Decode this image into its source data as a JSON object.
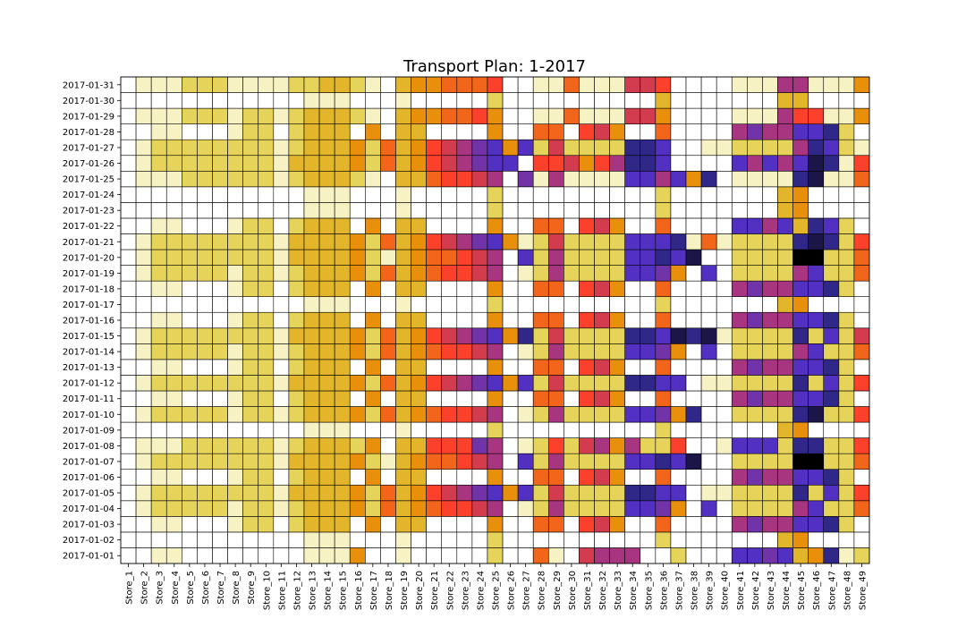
{
  "chart_data": {
    "type": "heatmap",
    "title": "Transport Plan: 1-2017",
    "x": [
      "Store_1",
      "Store_2",
      "Store_3",
      "Store_4",
      "Store_5",
      "Store_6",
      "Store_7",
      "Store_8",
      "Store_9",
      "Store_10",
      "Store_11",
      "Store_12",
      "Store_13",
      "Store_14",
      "Store_15",
      "Store_16",
      "Store_17",
      "Store_18",
      "Store_19",
      "Store_20",
      "Store_21",
      "Store_22",
      "Store_23",
      "Store_24",
      "Store_25",
      "Store_26",
      "Store_27",
      "Store_28",
      "Store_29",
      "Store_30",
      "Store_31",
      "Store_32",
      "Store_33",
      "Store_34",
      "Store_35",
      "Store_36",
      "Store_37",
      "Store_38",
      "Store_39",
      "Store_40",
      "Store_41",
      "Store_42",
      "Store_43",
      "Store_44",
      "Store_45",
      "Store_46",
      "Store_47",
      "Store_48",
      "Store_49"
    ],
    "y": [
      "2017-01-01",
      "2017-01-02",
      "2017-01-03",
      "2017-01-04",
      "2017-01-05",
      "2017-01-06",
      "2017-01-07",
      "2017-01-08",
      "2017-01-09",
      "2017-01-10",
      "2017-01-11",
      "2017-01-12",
      "2017-01-13",
      "2017-01-14",
      "2017-01-15",
      "2017-01-16",
      "2017-01-17",
      "2017-01-18",
      "2017-01-19",
      "2017-01-20",
      "2017-01-21",
      "2017-01-22",
      "2017-01-23",
      "2017-01-24",
      "2017-01-25",
      "2017-01-26",
      "2017-01-27",
      "2017-01-28",
      "2017-01-29",
      "2017-01-30",
      "2017-01-31"
    ],
    "zlim": [
      0,
      13
    ],
    "colors": [
      "#ffffff",
      "#f6f2c4",
      "#e6d35a",
      "#e2b52a",
      "#e8900c",
      "#f2661c",
      "#fb402c",
      "#d23c4e",
      "#a83580",
      "#7034a8",
      "#5230c2",
      "#302888",
      "#1c1648",
      "#000000"
    ],
    "z": [
      [
        0,
        0,
        1,
        1,
        0,
        0,
        0,
        0,
        0,
        0,
        0,
        0,
        1,
        1,
        1,
        4,
        0,
        0,
        1,
        0,
        0,
        0,
        0,
        0,
        2,
        0,
        0,
        5,
        1,
        0,
        7,
        8,
        8,
        8,
        0,
        0,
        2,
        0,
        0,
        0,
        10,
        10,
        9,
        10,
        3,
        4,
        11,
        1,
        2
      ],
      [
        0,
        0,
        0,
        0,
        0,
        0,
        0,
        0,
        0,
        0,
        0,
        0,
        1,
        1,
        1,
        0,
        0,
        0,
        1,
        0,
        0,
        0,
        0,
        0,
        2,
        0,
        0,
        0,
        0,
        0,
        0,
        0,
        0,
        0,
        0,
        2,
        0,
        0,
        0,
        0,
        0,
        0,
        0,
        3,
        4,
        0,
        0,
        0,
        0
      ],
      [
        0,
        0,
        1,
        1,
        0,
        0,
        0,
        1,
        2,
        2,
        0,
        2,
        3,
        3,
        3,
        0,
        4,
        0,
        3,
        3,
        0,
        0,
        0,
        0,
        4,
        0,
        0,
        5,
        5,
        0,
        6,
        7,
        4,
        0,
        0,
        5,
        0,
        0,
        0,
        0,
        8,
        9,
        8,
        8,
        10,
        10,
        11,
        2,
        0
      ],
      [
        0,
        1,
        2,
        2,
        2,
        2,
        2,
        1,
        2,
        2,
        1,
        2,
        3,
        3,
        3,
        4,
        2,
        5,
        3,
        4,
        5,
        6,
        6,
        7,
        8,
        0,
        1,
        2,
        8,
        2,
        2,
        2,
        2,
        10,
        10,
        9,
        4,
        0,
        10,
        0,
        2,
        2,
        2,
        2,
        8,
        10,
        2,
        2,
        5
      ],
      [
        0,
        1,
        2,
        2,
        2,
        2,
        2,
        2,
        2,
        2,
        1,
        3,
        3,
        3,
        3,
        4,
        2,
        5,
        3,
        4,
        6,
        7,
        8,
        9,
        10,
        4,
        10,
        2,
        7,
        2,
        2,
        2,
        2,
        11,
        11,
        10,
        10,
        0,
        1,
        1,
        2,
        2,
        2,
        2,
        11,
        2,
        10,
        2,
        6
      ],
      [
        0,
        0,
        1,
        1,
        0,
        0,
        0,
        1,
        2,
        2,
        0,
        2,
        3,
        3,
        3,
        0,
        4,
        0,
        3,
        3,
        0,
        0,
        0,
        0,
        4,
        0,
        0,
        5,
        5,
        0,
        6,
        7,
        4,
        0,
        0,
        5,
        0,
        0,
        0,
        0,
        8,
        9,
        8,
        8,
        10,
        10,
        11,
        2,
        0
      ],
      [
        0,
        1,
        2,
        2,
        2,
        2,
        2,
        2,
        2,
        2,
        1,
        3,
        3,
        3,
        3,
        4,
        2,
        1,
        3,
        4,
        5,
        5,
        6,
        7,
        8,
        0,
        10,
        2,
        8,
        2,
        2,
        2,
        2,
        10,
        10,
        11,
        10,
        12,
        0,
        0,
        2,
        2,
        2,
        2,
        13,
        13,
        2,
        2,
        5
      ],
      [
        0,
        1,
        1,
        1,
        2,
        2,
        2,
        2,
        2,
        2,
        1,
        2,
        3,
        3,
        3,
        2,
        4,
        0,
        3,
        3,
        6,
        6,
        6,
        9,
        8,
        0,
        1,
        2,
        6,
        2,
        7,
        8,
        4,
        8,
        2,
        2,
        6,
        0,
        0,
        1,
        10,
        10,
        10,
        2,
        11,
        11,
        2,
        2,
        6
      ],
      [
        0,
        0,
        0,
        0,
        0,
        0,
        0,
        0,
        0,
        0,
        0,
        0,
        1,
        1,
        1,
        0,
        0,
        0,
        1,
        0,
        0,
        0,
        0,
        0,
        2,
        0,
        0,
        0,
        0,
        0,
        0,
        0,
        0,
        0,
        0,
        2,
        0,
        0,
        0,
        0,
        0,
        0,
        0,
        3,
        4,
        0,
        0,
        0,
        0
      ],
      [
        0,
        1,
        2,
        2,
        2,
        2,
        2,
        1,
        2,
        2,
        1,
        2,
        3,
        3,
        3,
        4,
        2,
        5,
        3,
        4,
        5,
        6,
        6,
        7,
        8,
        0,
        1,
        2,
        8,
        2,
        2,
        2,
        2,
        10,
        10,
        9,
        4,
        11,
        0,
        0,
        2,
        2,
        2,
        2,
        11,
        12,
        2,
        2,
        6
      ],
      [
        0,
        0,
        1,
        1,
        0,
        0,
        0,
        1,
        2,
        2,
        0,
        2,
        3,
        3,
        3,
        0,
        4,
        0,
        3,
        3,
        0,
        0,
        0,
        0,
        4,
        0,
        0,
        5,
        5,
        0,
        6,
        7,
        4,
        0,
        0,
        5,
        0,
        0,
        0,
        0,
        8,
        9,
        8,
        8,
        10,
        10,
        11,
        2,
        0
      ],
      [
        0,
        1,
        2,
        2,
        2,
        2,
        2,
        2,
        2,
        2,
        1,
        3,
        3,
        3,
        3,
        4,
        2,
        5,
        3,
        4,
        6,
        7,
        8,
        9,
        10,
        4,
        10,
        2,
        7,
        2,
        2,
        2,
        2,
        11,
        11,
        10,
        10,
        0,
        1,
        1,
        2,
        2,
        2,
        2,
        11,
        2,
        10,
        2,
        6
      ],
      [
        0,
        0,
        1,
        1,
        0,
        0,
        0,
        1,
        2,
        2,
        0,
        2,
        3,
        3,
        3,
        0,
        4,
        0,
        3,
        3,
        0,
        0,
        0,
        0,
        4,
        0,
        0,
        5,
        5,
        0,
        6,
        7,
        4,
        0,
        0,
        5,
        0,
        0,
        0,
        0,
        8,
        9,
        8,
        8,
        10,
        10,
        11,
        2,
        0
      ],
      [
        0,
        1,
        2,
        2,
        2,
        2,
        2,
        1,
        2,
        2,
        1,
        2,
        3,
        3,
        3,
        4,
        2,
        5,
        3,
        4,
        5,
        6,
        6,
        7,
        8,
        0,
        1,
        2,
        8,
        2,
        2,
        2,
        2,
        10,
        10,
        9,
        4,
        0,
        10,
        0,
        2,
        2,
        2,
        2,
        8,
        10,
        2,
        2,
        5
      ],
      [
        0,
        1,
        2,
        2,
        2,
        2,
        2,
        2,
        2,
        2,
        1,
        3,
        3,
        3,
        3,
        4,
        2,
        5,
        3,
        4,
        6,
        7,
        8,
        9,
        10,
        4,
        11,
        2,
        7,
        2,
        2,
        2,
        2,
        11,
        11,
        10,
        12,
        11,
        12,
        1,
        2,
        2,
        2,
        2,
        11,
        2,
        10,
        2,
        7
      ],
      [
        0,
        0,
        1,
        1,
        0,
        0,
        0,
        1,
        2,
        2,
        0,
        2,
        3,
        3,
        3,
        0,
        4,
        0,
        3,
        3,
        0,
        0,
        0,
        0,
        4,
        0,
        0,
        5,
        5,
        0,
        6,
        7,
        4,
        0,
        0,
        5,
        0,
        0,
        0,
        0,
        8,
        9,
        8,
        8,
        10,
        10,
        11,
        2,
        0
      ],
      [
        0,
        0,
        0,
        0,
        0,
        0,
        0,
        0,
        0,
        0,
        0,
        0,
        1,
        1,
        1,
        0,
        0,
        0,
        1,
        0,
        0,
        0,
        0,
        0,
        2,
        0,
        0,
        0,
        0,
        0,
        0,
        0,
        0,
        0,
        0,
        2,
        0,
        0,
        0,
        0,
        0,
        0,
        0,
        3,
        4,
        0,
        0,
        0,
        0
      ],
      [
        0,
        0,
        1,
        1,
        0,
        0,
        0,
        1,
        2,
        2,
        0,
        2,
        3,
        3,
        3,
        0,
        4,
        0,
        3,
        3,
        0,
        0,
        0,
        0,
        4,
        0,
        0,
        5,
        5,
        0,
        6,
        7,
        4,
        0,
        0,
        5,
        0,
        0,
        0,
        0,
        8,
        9,
        8,
        8,
        10,
        10,
        11,
        2,
        0
      ],
      [
        0,
        1,
        2,
        2,
        2,
        2,
        2,
        1,
        2,
        2,
        1,
        2,
        3,
        3,
        3,
        4,
        2,
        5,
        3,
        4,
        5,
        6,
        6,
        7,
        8,
        0,
        1,
        2,
        8,
        2,
        2,
        2,
        2,
        10,
        10,
        9,
        4,
        0,
        10,
        0,
        2,
        2,
        2,
        2,
        8,
        10,
        2,
        2,
        5
      ],
      [
        0,
        1,
        2,
        2,
        2,
        2,
        2,
        2,
        2,
        2,
        1,
        3,
        3,
        3,
        3,
        4,
        2,
        1,
        3,
        4,
        5,
        5,
        6,
        7,
        8,
        0,
        10,
        2,
        8,
        2,
        2,
        2,
        2,
        10,
        10,
        11,
        10,
        12,
        0,
        0,
        2,
        2,
        2,
        2,
        13,
        13,
        2,
        2,
        5
      ],
      [
        0,
        1,
        2,
        2,
        2,
        2,
        2,
        2,
        2,
        2,
        1,
        3,
        3,
        3,
        3,
        4,
        2,
        5,
        3,
        4,
        6,
        7,
        8,
        9,
        10,
        4,
        1,
        2,
        7,
        2,
        2,
        2,
        2,
        10,
        10,
        10,
        11,
        1,
        5,
        1,
        2,
        2,
        2,
        2,
        11,
        12,
        11,
        2,
        6
      ],
      [
        0,
        0,
        1,
        1,
        0,
        0,
        0,
        1,
        2,
        2,
        0,
        2,
        3,
        3,
        3,
        0,
        4,
        0,
        3,
        3,
        0,
        0,
        0,
        0,
        4,
        0,
        0,
        5,
        5,
        0,
        6,
        7,
        4,
        0,
        0,
        5,
        0,
        0,
        0,
        0,
        10,
        10,
        8,
        10,
        3,
        11,
        10,
        2,
        0
      ],
      [
        0,
        0,
        0,
        0,
        0,
        0,
        0,
        0,
        0,
        0,
        0,
        0,
        1,
        1,
        1,
        0,
        0,
        0,
        1,
        0,
        0,
        0,
        0,
        0,
        2,
        0,
        0,
        0,
        0,
        0,
        0,
        0,
        0,
        0,
        0,
        2,
        0,
        0,
        0,
        0,
        0,
        0,
        0,
        3,
        4,
        0,
        0,
        0,
        0
      ],
      [
        0,
        0,
        0,
        0,
        0,
        0,
        0,
        0,
        0,
        0,
        0,
        0,
        1,
        1,
        1,
        0,
        0,
        0,
        1,
        0,
        0,
        0,
        0,
        0,
        2,
        0,
        0,
        0,
        0,
        0,
        0,
        0,
        0,
        0,
        0,
        2,
        0,
        0,
        0,
        0,
        0,
        0,
        0,
        3,
        4,
        0,
        0,
        0,
        0
      ],
      [
        0,
        1,
        1,
        1,
        2,
        2,
        2,
        2,
        2,
        2,
        1,
        2,
        3,
        3,
        3,
        2,
        1,
        0,
        3,
        3,
        5,
        6,
        6,
        7,
        8,
        0,
        9,
        1,
        8,
        1,
        1,
        1,
        1,
        10,
        10,
        8,
        10,
        4,
        11,
        0,
        1,
        1,
        1,
        1,
        11,
        12,
        1,
        1,
        5
      ],
      [
        0,
        1,
        2,
        2,
        2,
        2,
        2,
        2,
        2,
        2,
        1,
        3,
        3,
        3,
        3,
        4,
        2,
        5,
        3,
        4,
        6,
        7,
        8,
        9,
        10,
        10,
        0,
        6,
        6,
        7,
        4,
        6,
        8,
        11,
        11,
        10,
        0,
        0,
        0,
        0,
        10,
        8,
        10,
        8,
        10,
        12,
        11,
        1,
        6
      ],
      [
        0,
        1,
        2,
        2,
        2,
        2,
        2,
        2,
        2,
        2,
        1,
        2,
        3,
        3,
        3,
        4,
        2,
        5,
        3,
        4,
        6,
        7,
        8,
        9,
        10,
        4,
        10,
        2,
        7,
        2,
        2,
        2,
        2,
        11,
        11,
        10,
        0,
        0,
        1,
        1,
        2,
        2,
        2,
        2,
        8,
        11,
        10,
        2,
        1
      ],
      [
        0,
        0,
        1,
        1,
        0,
        0,
        0,
        1,
        2,
        2,
        0,
        2,
        3,
        3,
        3,
        0,
        4,
        0,
        3,
        3,
        0,
        0,
        0,
        0,
        4,
        0,
        0,
        5,
        5,
        0,
        6,
        7,
        4,
        0,
        0,
        5,
        0,
        0,
        0,
        0,
        8,
        9,
        8,
        8,
        10,
        10,
        11,
        2,
        0
      ],
      [
        0,
        1,
        1,
        1,
        2,
        2,
        2,
        1,
        2,
        2,
        1,
        2,
        3,
        3,
        3,
        2,
        1,
        0,
        3,
        4,
        4,
        5,
        5,
        6,
        4,
        0,
        0,
        1,
        1,
        5,
        1,
        1,
        1,
        7,
        7,
        4,
        0,
        0,
        0,
        0,
        1,
        1,
        1,
        8,
        6,
        6,
        1,
        1,
        4
      ],
      [
        0,
        0,
        0,
        0,
        0,
        0,
        0,
        0,
        0,
        0,
        0,
        0,
        1,
        1,
        1,
        0,
        0,
        0,
        1,
        0,
        0,
        0,
        0,
        0,
        2,
        0,
        0,
        0,
        0,
        0,
        0,
        0,
        0,
        0,
        0,
        3,
        0,
        0,
        0,
        0,
        0,
        0,
        0,
        3,
        3,
        0,
        0,
        0,
        0
      ],
      [
        0,
        1,
        1,
        1,
        2,
        2,
        2,
        1,
        1,
        1,
        1,
        2,
        2,
        3,
        3,
        2,
        1,
        0,
        3,
        4,
        4,
        5,
        5,
        5,
        6,
        0,
        0,
        1,
        1,
        5,
        1,
        1,
        1,
        7,
        7,
        6,
        0,
        0,
        0,
        0,
        1,
        1,
        1,
        8,
        8,
        1,
        1,
        1,
        4
      ]
    ]
  }
}
